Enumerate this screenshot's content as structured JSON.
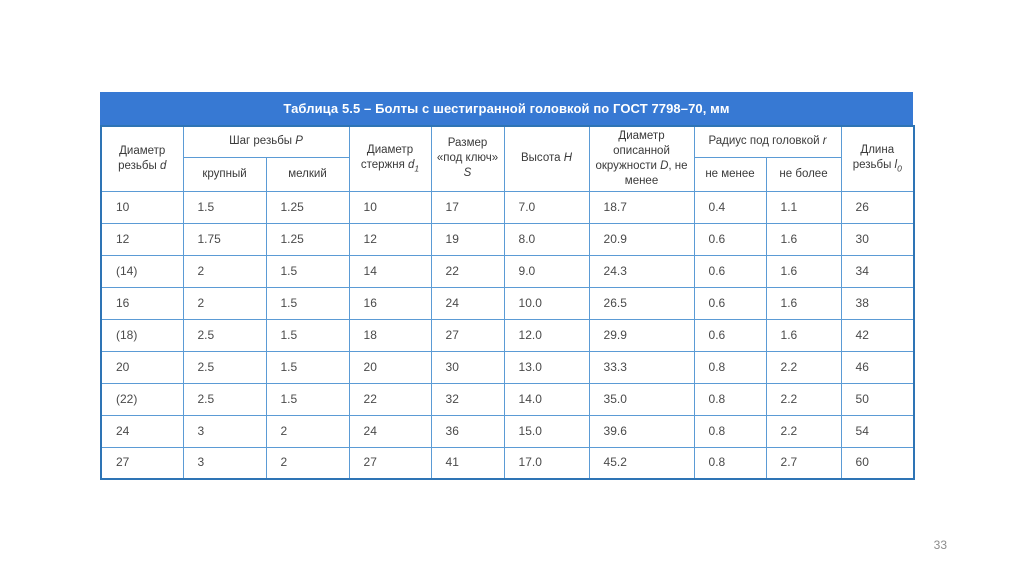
{
  "page": {
    "number": "33"
  },
  "colors": {
    "title_bar": "#3779d3",
    "grid_line": "#5b9bd5",
    "outer_border": "#2e74b5",
    "header_text": "#3a3a3a",
    "cell_text": "#4a4a4a",
    "page_number": "#8c8c8c"
  },
  "table": {
    "title": "Таблица 5.5 – Болты с шестигранной головкой по ГОСТ 7798–70, мм",
    "headers": {
      "d": {
        "label": "Диаметр резьбы",
        "sym": "d"
      },
      "p": {
        "label": "Шаг резьбы",
        "sym": "P",
        "sub1": "крупный",
        "sub2": "мелкий"
      },
      "d1": {
        "label": "Диаметр стержня",
        "sym": "d",
        "subscript": "1"
      },
      "s": {
        "label": "Размер «под ключ»",
        "sym": "S"
      },
      "h": {
        "label": "Высота",
        "sym": "H"
      },
      "dd": {
        "label": "Диаметр описанной окружности",
        "sym": "D",
        "suffix": ", не менее"
      },
      "r": {
        "label": "Радиус под головкой",
        "sym": "r",
        "sub1": "не менее",
        "sub2": "не более"
      },
      "l0": {
        "label": "Длина резьбы",
        "sym": "l",
        "subscript": "0"
      }
    },
    "rows": [
      [
        "10",
        "1.5",
        "1.25",
        "10",
        "17",
        "7.0",
        "18.7",
        "0.4",
        "1.1",
        "26"
      ],
      [
        "12",
        "1.75",
        "1.25",
        "12",
        "19",
        "8.0",
        "20.9",
        "0.6",
        "1.6",
        "30"
      ],
      [
        "(14)",
        "2",
        "1.5",
        "14",
        "22",
        "9.0",
        "24.3",
        "0.6",
        "1.6",
        "34"
      ],
      [
        "16",
        "2",
        "1.5",
        "16",
        "24",
        "10.0",
        "26.5",
        "0.6",
        "1.6",
        "38"
      ],
      [
        "(18)",
        "2.5",
        "1.5",
        "18",
        "27",
        "12.0",
        "29.9",
        "0.6",
        "1.6",
        "42"
      ],
      [
        "20",
        "2.5",
        "1.5",
        "20",
        "30",
        "13.0",
        "33.3",
        "0.8",
        "2.2",
        "46"
      ],
      [
        "(22)",
        "2.5",
        "1.5",
        "22",
        "32",
        "14.0",
        "35.0",
        "0.8",
        "2.2",
        "50"
      ],
      [
        "24",
        "3",
        "2",
        "24",
        "36",
        "15.0",
        "39.6",
        "0.8",
        "2.2",
        "54"
      ],
      [
        "27",
        "3",
        "2",
        "27",
        "41",
        "17.0",
        "45.2",
        "0.8",
        "2.7",
        "60"
      ]
    ]
  }
}
